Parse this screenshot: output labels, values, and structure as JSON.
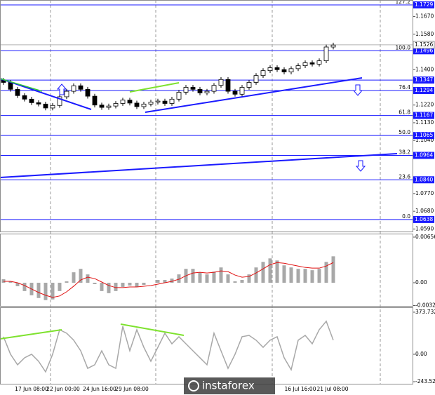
{
  "chart_data": [
    {
      "type": "candlestick",
      "ylim": [
        1.0577,
        1.1754
      ],
      "yticks": [
        {
          "value": 1.167,
          "label": "1.1670"
        },
        {
          "value": 1.158,
          "label": "1.1580"
        },
        {
          "value": 1.14,
          "label": "1.1400"
        },
        {
          "value": 1.122,
          "label": "1.1220"
        },
        {
          "value": 1.113,
          "label": "1.1130"
        },
        {
          "value": 1.104,
          "label": "1.1040"
        },
        {
          "value": 1.077,
          "label": "1.0770"
        },
        {
          "value": 1.068,
          "label": "1.0680"
        },
        {
          "value": 1.059,
          "label": "1.0590"
        }
      ],
      "open": [
        1.1345,
        1.1335,
        1.13,
        1.1268,
        1.125,
        1.1232,
        1.1225,
        1.1205,
        1.1218,
        1.1262,
        1.129,
        1.1318,
        1.13,
        1.1265,
        1.122,
        1.1208,
        1.1215,
        1.1228,
        1.1245,
        1.123,
        1.1212,
        1.1225,
        1.1235,
        1.124,
        1.1228,
        1.125,
        1.1285,
        1.131,
        1.13,
        1.1282,
        1.129,
        1.132,
        1.135,
        1.129,
        1.1275,
        1.131,
        1.1335,
        1.137,
        1.1395,
        1.141,
        1.14,
        1.1388,
        1.1405,
        1.142,
        1.1435,
        1.1428,
        1.1445,
        1.1515
      ],
      "high": [
        1.1357,
        1.1347,
        1.1312,
        1.128,
        1.1262,
        1.1244,
        1.1237,
        1.123,
        1.1274,
        1.1302,
        1.133,
        1.133,
        1.1312,
        1.1277,
        1.1232,
        1.1227,
        1.124,
        1.1257,
        1.1257,
        1.1242,
        1.1237,
        1.1247,
        1.1252,
        1.1252,
        1.1262,
        1.1297,
        1.1322,
        1.1322,
        1.1312,
        1.1302,
        1.1332,
        1.1362,
        1.1362,
        1.1302,
        1.1322,
        1.1347,
        1.1382,
        1.1407,
        1.1422,
        1.1422,
        1.1412,
        1.1417,
        1.1432,
        1.1447,
        1.1447,
        1.1457,
        1.1527,
        1.1537
      ],
      "low": [
        1.1323,
        1.1288,
        1.1256,
        1.1238,
        1.122,
        1.1213,
        1.1193,
        1.1193,
        1.1206,
        1.125,
        1.1278,
        1.1288,
        1.1253,
        1.1208,
        1.1196,
        1.1196,
        1.1203,
        1.1216,
        1.1218,
        1.12,
        1.12,
        1.1213,
        1.1223,
        1.1216,
        1.1216,
        1.1238,
        1.1273,
        1.1288,
        1.127,
        1.127,
        1.1278,
        1.1308,
        1.1278,
        1.1263,
        1.1263,
        1.1298,
        1.1323,
        1.1358,
        1.1383,
        1.1388,
        1.1376,
        1.1376,
        1.1393,
        1.1408,
        1.1416,
        1.1416,
        1.1433,
        1.1503
      ],
      "close": [
        1.1335,
        1.13,
        1.1268,
        1.125,
        1.1232,
        1.1225,
        1.1205,
        1.1218,
        1.1262,
        1.129,
        1.1318,
        1.13,
        1.1265,
        1.122,
        1.1208,
        1.1215,
        1.1228,
        1.1245,
        1.123,
        1.1212,
        1.1225,
        1.1235,
        1.124,
        1.1228,
        1.125,
        1.1285,
        1.131,
        1.13,
        1.1282,
        1.129,
        1.132,
        1.135,
        1.129,
        1.1275,
        1.131,
        1.1335,
        1.137,
        1.1395,
        1.141,
        1.14,
        1.1388,
        1.1405,
        1.142,
        1.1435,
        1.1428,
        1.1445,
        1.1515,
        1.1525
      ],
      "current_price": 1.1526,
      "level_color": "#1a1aff",
      "levels": [
        {
          "price": 1.1729,
          "fib": "127.2"
        },
        {
          "price": 1.1496,
          "fib": "100.0"
        },
        {
          "price": 1.1347
        },
        {
          "price": 1.1294,
          "fib": "76.4"
        },
        {
          "price": 1.1167,
          "fib": "61.8"
        },
        {
          "price": 1.1065,
          "fib": "50.0"
        },
        {
          "price": 1.0964,
          "fib": "38.2"
        },
        {
          "price": {
            "value": 1.084,
            "label": "1.0840"
          },
          "fib": "23.6"
        },
        {
          "price": 1.0638,
          "fib": "0.0"
        }
      ],
      "time_labels": [
        "17 Jun 08:00",
        "22 Jun 00:00",
        "24 Jun 16:00",
        "29 Jun 08:00",
        "16 Jul 16:00",
        "21 Jul 08:00"
      ],
      "watermark": "instaforex"
    },
    {
      "type": "macd",
      "ylim": [
        -0.00343,
        0.00706
      ],
      "yticks": [
        0.00656,
        {
          "value": 0,
          "label": "0.00"
        },
        -0.00328
      ],
      "histogram_color": "#a8a8a8",
      "signal_color": "#e01010",
      "histogram": [
        0.0005,
        0.0002,
        -0.0005,
        -0.0012,
        -0.0018,
        -0.0022,
        -0.0025,
        -0.0024,
        -0.0012,
        0.0002,
        0.0015,
        0.002,
        0.0012,
        -0.0002,
        -0.0012,
        -0.0015,
        -0.0012,
        -0.0006,
        -0.0004,
        -0.0006,
        -0.0003,
        0.0,
        0.0004,
        0.0004,
        0.0006,
        0.0012,
        0.002,
        0.002,
        0.0015,
        0.0012,
        0.0016,
        0.0022,
        0.0012,
        0.0002,
        0.0004,
        0.0012,
        0.0022,
        0.003,
        0.0035,
        0.0032,
        0.0025,
        0.0022,
        0.002,
        0.002,
        0.0018,
        0.002,
        0.003,
        0.0038
      ],
      "signal": [
        0.0002,
        0.0002,
        0.0,
        -0.0004,
        -0.0009,
        -0.0014,
        -0.0018,
        -0.0021,
        -0.0019,
        -0.0013,
        -0.0005,
        0.0004,
        0.0008,
        0.0006,
        0.0001,
        -0.0004,
        -0.0007,
        -0.0007,
        -0.0006,
        -0.0006,
        -0.0005,
        -0.0004,
        -0.0002,
        0.0,
        0.0002,
        0.0005,
        0.001,
        0.0014,
        0.0015,
        0.0014,
        0.0015,
        0.0017,
        0.0016,
        0.0011,
        0.0008,
        0.0009,
        0.0014,
        0.002,
        0.0026,
        0.0029,
        0.0028,
        0.0026,
        0.0024,
        0.0022,
        0.0021,
        0.0021,
        0.0024,
        0.0029
      ]
    },
    {
      "type": "line",
      "ylim": [
        -268,
        417
      ],
      "yticks": [
        373.7321,
        {
          "value": 0,
          "label": "0.00"
        },
        -243.5278
      ],
      "color": "#a8a8a8",
      "values": [
        156,
        0,
        -93,
        -31,
        0,
        -62,
        -156,
        0,
        218,
        187,
        125,
        31,
        -125,
        -93,
        31,
        -93,
        -125,
        249,
        31,
        218,
        62,
        -62,
        62,
        187,
        93,
        156,
        93,
        31,
        -31,
        -93,
        187,
        31,
        -125,
        0,
        156,
        168,
        125,
        62,
        125,
        156,
        -31,
        -137,
        125,
        168,
        93,
        218,
        293,
        125
      ]
    }
  ]
}
